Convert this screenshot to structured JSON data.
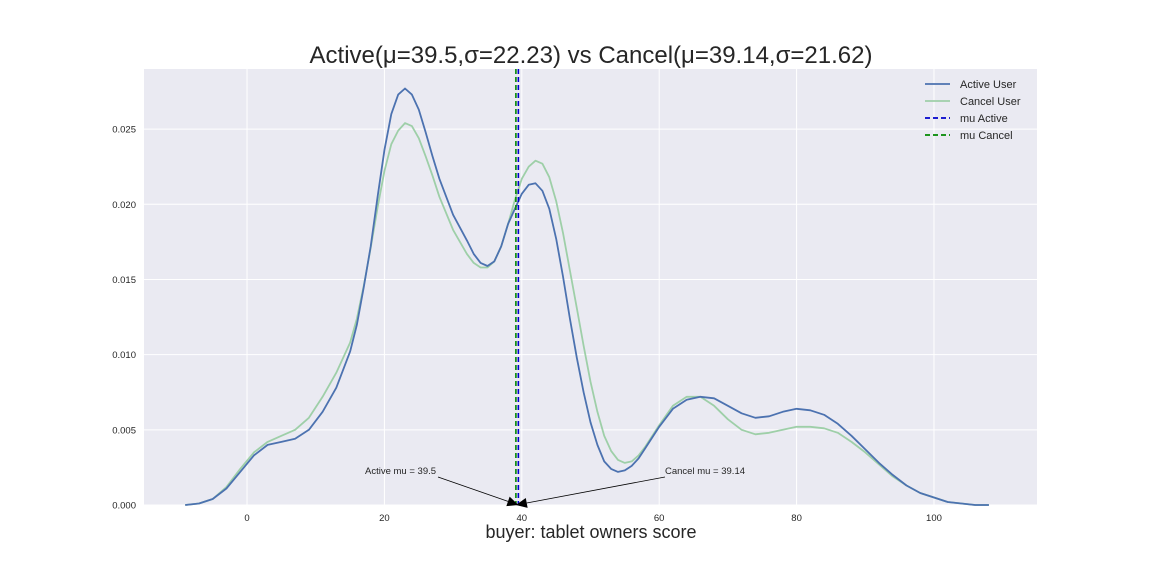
{
  "chart_data": {
    "type": "line",
    "title": "Active(μ=39.5,σ=22.23) vs Cancel(μ=39.14,σ=21.62)",
    "xlabel": "buyer: tablet owners score",
    "ylabel": "",
    "xlim": [
      -15,
      115
    ],
    "ylim": [
      0,
      0.029
    ],
    "x_ticks": [
      "0",
      "20",
      "40",
      "60",
      "80",
      "100"
    ],
    "y_ticks": [
      "0.000",
      "0.005",
      "0.010",
      "0.015",
      "0.020",
      "0.025"
    ],
    "grid": true,
    "legend_position": "top-right",
    "series": [
      {
        "name": "Active User",
        "color": "#4c72b0",
        "x": [
          -9,
          -7,
          -5,
          -3,
          -1,
          1,
          3,
          5,
          7,
          9,
          11,
          13,
          15,
          16,
          17,
          18,
          19,
          20,
          21,
          22,
          23,
          24,
          25,
          26,
          27,
          28,
          30,
          32,
          33,
          34,
          35,
          36,
          37,
          38,
          39,
          40,
          41,
          42,
          43,
          44,
          45,
          46,
          47,
          48,
          49,
          50,
          51,
          52,
          53,
          54,
          55,
          56,
          57,
          58,
          60,
          62,
          64,
          66,
          68,
          70,
          72,
          74,
          76,
          78,
          80,
          82,
          84,
          86,
          88,
          90,
          92,
          94,
          96,
          98,
          100,
          102,
          104,
          106,
          108
        ],
        "y": [
          0.0,
          0.0001,
          0.0004,
          0.0011,
          0.0022,
          0.0033,
          0.004,
          0.0042,
          0.0044,
          0.005,
          0.0062,
          0.0078,
          0.0102,
          0.012,
          0.0145,
          0.0172,
          0.0205,
          0.0236,
          0.026,
          0.0273,
          0.0277,
          0.0273,
          0.0263,
          0.0248,
          0.0232,
          0.0217,
          0.0193,
          0.0176,
          0.0167,
          0.0161,
          0.0159,
          0.0162,
          0.0172,
          0.0187,
          0.0197,
          0.0207,
          0.0213,
          0.0214,
          0.0209,
          0.0197,
          0.0177,
          0.0152,
          0.0124,
          0.0098,
          0.0075,
          0.0055,
          0.004,
          0.0029,
          0.0024,
          0.0022,
          0.0023,
          0.0026,
          0.0031,
          0.0038,
          0.0052,
          0.0064,
          0.007,
          0.0072,
          0.0071,
          0.0066,
          0.0061,
          0.0058,
          0.0059,
          0.0062,
          0.0064,
          0.0063,
          0.006,
          0.0054,
          0.0046,
          0.0037,
          0.0028,
          0.002,
          0.0013,
          0.0008,
          0.0005,
          0.0002,
          0.0001,
          0.0,
          0.0
        ]
      },
      {
        "name": "Cancel User",
        "color": "#9ecfa8",
        "x": [
          -9,
          -7,
          -5,
          -3,
          -1,
          1,
          3,
          5,
          7,
          9,
          11,
          13,
          15,
          16,
          17,
          18,
          19,
          20,
          21,
          22,
          23,
          24,
          25,
          26,
          27,
          28,
          30,
          32,
          33,
          34,
          35,
          36,
          37,
          38,
          39,
          40,
          41,
          42,
          43,
          44,
          45,
          46,
          47,
          48,
          49,
          50,
          51,
          52,
          53,
          54,
          55,
          56,
          57,
          58,
          60,
          62,
          64,
          66,
          68,
          70,
          72,
          74,
          76,
          78,
          80,
          82,
          84,
          86,
          88,
          90,
          92,
          94,
          96,
          98,
          100,
          102,
          104,
          106,
          108
        ],
        "y": [
          0.0,
          0.0001,
          0.0004,
          0.0012,
          0.0024,
          0.0035,
          0.0042,
          0.0046,
          0.005,
          0.0058,
          0.0072,
          0.0088,
          0.0108,
          0.0124,
          0.0146,
          0.0171,
          0.0198,
          0.0222,
          0.024,
          0.0249,
          0.0254,
          0.0252,
          0.0244,
          0.0232,
          0.0219,
          0.0205,
          0.0183,
          0.0167,
          0.0161,
          0.0158,
          0.0158,
          0.0162,
          0.0172,
          0.0187,
          0.0203,
          0.0217,
          0.0225,
          0.0229,
          0.0227,
          0.0218,
          0.0202,
          0.0181,
          0.0156,
          0.0131,
          0.0106,
          0.0082,
          0.0062,
          0.0046,
          0.0036,
          0.003,
          0.0028,
          0.0029,
          0.0033,
          0.0039,
          0.0053,
          0.0066,
          0.0072,
          0.0072,
          0.0066,
          0.0057,
          0.005,
          0.0047,
          0.0048,
          0.005,
          0.0052,
          0.0052,
          0.0051,
          0.0048,
          0.0042,
          0.0035,
          0.0027,
          0.0019,
          0.0013,
          0.0008,
          0.0005,
          0.0002,
          0.0001,
          0.0,
          0.0
        ]
      }
    ],
    "vlines": [
      {
        "name": "mu Active",
        "x": 39.5,
        "color": "#0000cc",
        "style": "dashed"
      },
      {
        "name": "mu Cancel",
        "x": 39.14,
        "color": "#008800",
        "style": "dashed"
      }
    ],
    "annotations": [
      {
        "text": "Active mu = 39.5",
        "point_x": 39.5,
        "point_y": 0
      },
      {
        "text": "Cancel mu = 39.14",
        "point_x": 39.14,
        "point_y": 0
      }
    ]
  }
}
